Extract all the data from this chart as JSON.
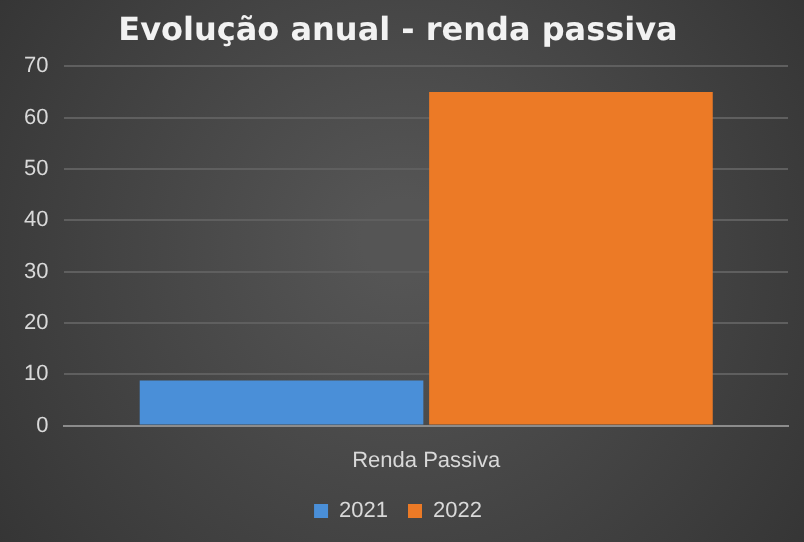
{
  "chart_data": {
    "type": "bar",
    "title": "Evolução anual - renda passiva",
    "categories": [
      "Renda Passiva"
    ],
    "series": [
      {
        "name": "2021",
        "color": "#4a8fd8",
        "values": [
          8.8
        ]
      },
      {
        "name": "2022",
        "color": "#ec7a26",
        "values": [
          65
        ]
      }
    ],
    "ylim": [
      0,
      70
    ],
    "yticks": [
      0,
      10,
      20,
      30,
      40,
      50,
      60,
      70
    ],
    "grid": "y",
    "legend": "bottom"
  }
}
